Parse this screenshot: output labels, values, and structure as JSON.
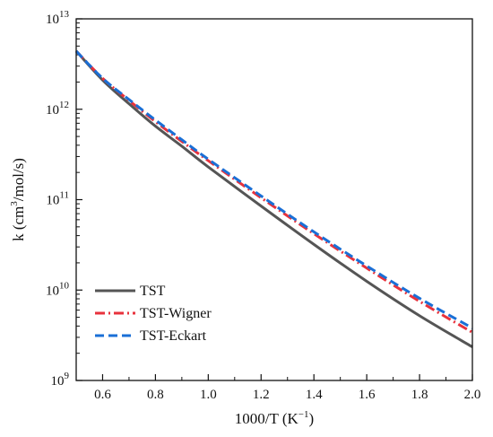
{
  "chart_data": {
    "type": "line",
    "title": "",
    "xlabel": {
      "main": "1000/T (K",
      "sup": "−1",
      "tail": ")"
    },
    "ylabel": {
      "main": "k (cm",
      "sup": "3",
      "tail": "/mol/s)"
    },
    "xlim": [
      0.5,
      2.0
    ],
    "ylim": [
      1000000000.0,
      10000000000000.0
    ],
    "yscale": "log",
    "grid": false,
    "legend_position": "bottom-left",
    "x_ticks": [
      {
        "value": 0.6,
        "label": "0.6"
      },
      {
        "value": 0.8,
        "label": "0.8"
      },
      {
        "value": 1.0,
        "label": "1.0"
      },
      {
        "value": 1.2,
        "label": "1.2"
      },
      {
        "value": 1.4,
        "label": "1.4"
      },
      {
        "value": 1.6,
        "label": "1.6"
      },
      {
        "value": 1.8,
        "label": "1.8"
      },
      {
        "value": 2.0,
        "label": "2.0"
      }
    ],
    "y_ticks": [
      {
        "value": 1000000000.0,
        "base": "10",
        "exp": "9"
      },
      {
        "value": 10000000000.0,
        "base": "10",
        "exp": "10"
      },
      {
        "value": 100000000000.0,
        "base": "10",
        "exp": "11"
      },
      {
        "value": 1000000000000.0,
        "base": "10",
        "exp": "12"
      },
      {
        "value": 10000000000000.0,
        "base": "10",
        "exp": "13"
      }
    ],
    "series": [
      {
        "name": "TST",
        "color": "#555555",
        "dash": "solid",
        "x": [
          0.5,
          0.6,
          0.7,
          0.8,
          0.9,
          1.0,
          1.2,
          1.4,
          1.6,
          1.8,
          2.0
        ],
        "y": [
          4400000000000.0,
          2100000000000.0,
          1150000000000.0,
          650000000000.0,
          390000000000.0,
          230000000000.0,
          85000000000.0,
          32000000000.0,
          12500000000.0,
          5200000000.0,
          2350000000.0
        ]
      },
      {
        "name": "TST-Wigner",
        "color": "#e8323c",
        "dash": "dashdot",
        "x": [
          0.5,
          0.6,
          0.7,
          0.8,
          0.9,
          1.0,
          1.2,
          1.4,
          1.6,
          1.8,
          2.0
        ],
        "y": [
          4400000000000.0,
          2200000000000.0,
          1250000000000.0,
          730000000000.0,
          440000000000.0,
          270000000000.0,
          105000000000.0,
          42000000000.0,
          17500000000.0,
          7500000000.0,
          3400000000.0
        ]
      },
      {
        "name": "TST-Eckart",
        "color": "#1a6fd6",
        "dash": "dashed",
        "x": [
          0.5,
          0.6,
          0.7,
          0.8,
          0.9,
          1.0,
          1.2,
          1.4,
          1.6,
          1.8,
          2.0
        ],
        "y": [
          4400000000000.0,
          2200000000000.0,
          1280000000000.0,
          760000000000.0,
          460000000000.0,
          280000000000.0,
          110000000000.0,
          44000000000.0,
          18500000000.0,
          8100000000.0,
          3800000000.0
        ]
      }
    ]
  }
}
